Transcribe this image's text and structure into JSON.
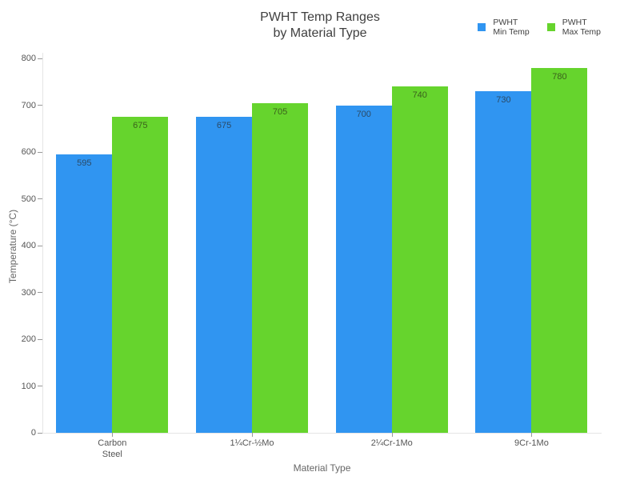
{
  "chart_data": {
    "type": "bar",
    "title_lines": [
      "PWHT Temp Ranges",
      "by Material Type"
    ],
    "xlabel": "Material Type",
    "ylabel": "Temperature (°C)",
    "ylim": [
      0,
      800
    ],
    "ytick_step": 100,
    "grid": false,
    "legend_position": "top-right",
    "categories": [
      "Carbon Steel",
      "1¼Cr-½Mo",
      "2¼Cr-1Mo",
      "9Cr-1Mo"
    ],
    "series": [
      {
        "name": "PWHT Min Temp",
        "legend_lines": [
          "PWHT",
          "Min Temp"
        ],
        "color": "#3095f1",
        "label_color": "#2b4a66",
        "values": [
          595,
          675,
          700,
          730
        ]
      },
      {
        "name": "PWHT Max Temp",
        "legend_lines": [
          "PWHT",
          "Max Temp"
        ],
        "color": "#66d42d",
        "label_color": "#3a611c",
        "values": [
          675,
          705,
          740,
          780
        ]
      }
    ],
    "colors": {
      "background": "#ffffff",
      "axis_line": "#e5e5e5",
      "tick_mark": "#999999",
      "tick_label": "#555555",
      "axis_title": "#666666",
      "title": "#404040",
      "legend_text": "#3f3f3f"
    }
  }
}
